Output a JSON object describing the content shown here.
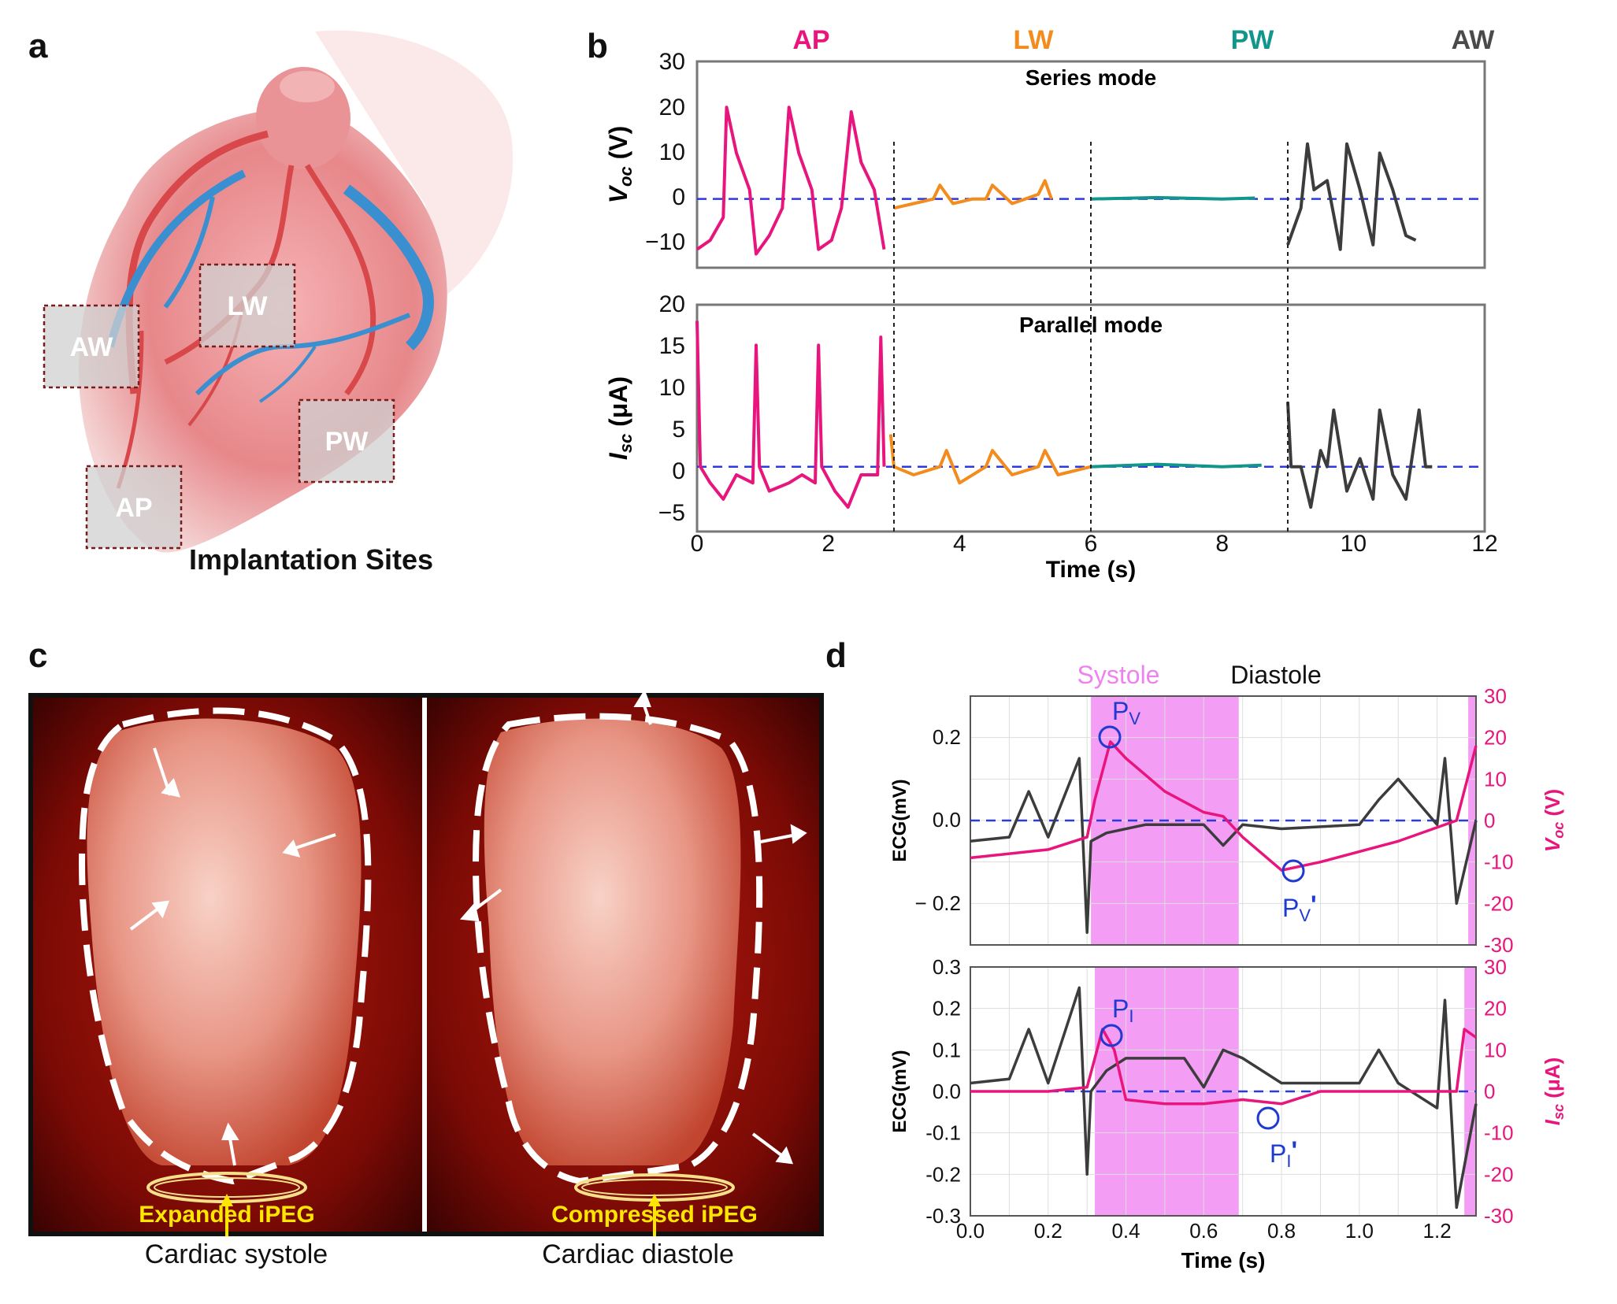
{
  "panels": {
    "a": "a",
    "b": "b",
    "c": "c",
    "d": "d"
  },
  "panel_a": {
    "caption": "Implantation Sites",
    "sites": [
      "AW",
      "LW",
      "PW",
      "AP"
    ]
  },
  "panel_b": {
    "site_labels": [
      {
        "text": "AP",
        "color": "#e8157d"
      },
      {
        "text": "LW",
        "color": "#f28c1e"
      },
      {
        "text": "PW",
        "color": "#12968c"
      },
      {
        "text": "AW",
        "color": "#4a4a4a"
      }
    ],
    "top_title": "Series mode",
    "bottom_title": "Parallel mode",
    "top_ylabel_main": "V",
    "top_ylabel_sub": "oc",
    "top_ylabel_unit": " (V)",
    "bottom_ylabel_main": "I",
    "bottom_ylabel_sub": "sc",
    "bottom_ylabel_unit": " (μA)",
    "xlabel": "Time (s)",
    "top_yticks": [
      "30",
      "20",
      "10",
      "0",
      "−10"
    ],
    "bottom_yticks": [
      "20",
      "15",
      "10",
      "5",
      "0",
      "−5"
    ],
    "xticks": [
      "0",
      "2",
      "4",
      "6",
      "8",
      "10",
      "12"
    ]
  },
  "panel_c": {
    "label_left": "Expanded iPEG",
    "label_right": "Compressed iPEG",
    "caption_left": "Cardiac systole",
    "caption_right": "Cardiac diastole"
  },
  "panel_d": {
    "systole_label": "Systole",
    "diastole_label": "Diastole",
    "xlabel": "Time (s)",
    "top_ylabel_left": "ECG(mV)",
    "top_ylabel_right_main": "V",
    "top_ylabel_right_sub": "oc",
    "top_ylabel_right_unit": " (V)",
    "bottom_ylabel_left": "ECG(mV)",
    "bottom_ylabel_right_main": "I",
    "bottom_ylabel_right_sub": "sc",
    "bottom_ylabel_right_unit": " (μA)",
    "top_left_ticks": [
      "0.2",
      "0.0",
      "− 0.2"
    ],
    "top_right_ticks": [
      "30",
      "20",
      "10",
      "0",
      "-10",
      "-20",
      "-30"
    ],
    "bottom_left_ticks": [
      "0.3",
      "0.2",
      "0.1",
      "0.0",
      "-0.1",
      "-0.2",
      "-0.3"
    ],
    "bottom_right_ticks": [
      "30",
      "20",
      "10",
      "0",
      "-10",
      "-20",
      "-30"
    ],
    "xticks": [
      "0.0",
      "0.2",
      "0.4",
      "0.6",
      "0.8",
      "1.0",
      "1.2"
    ],
    "markers": {
      "pv": "P",
      "pv_sub": "V",
      "pv2": "P",
      "pv2_sub": "V",
      "pv2_prime": "'",
      "pi": "P",
      "pi_sub": "I",
      "pi2": "P",
      "pi2_sub": "I",
      "pi2_prime": "'"
    }
  },
  "chart_data": [
    {
      "type": "line",
      "panel": "b-top",
      "ylabel": "Voc (V)",
      "ylim": [
        -15,
        30
      ],
      "xlim": [
        0,
        12
      ],
      "series": [
        {
          "name": "AP",
          "color": "#e8157d",
          "x": [
            0,
            0.2,
            0.4,
            0.45,
            0.6,
            0.8,
            0.9,
            1.1,
            1.3,
            1.4,
            1.55,
            1.75,
            1.85,
            2.05,
            2.2,
            2.35,
            2.5,
            2.7,
            2.85
          ],
          "y": [
            -11,
            -9,
            -4,
            20,
            10,
            2,
            -12,
            -8,
            -2,
            20,
            10,
            2,
            -11,
            -9,
            -2,
            19,
            8,
            2,
            -11
          ]
        },
        {
          "name": "LW",
          "color": "#f28c1e",
          "x": [
            3,
            3.3,
            3.6,
            3.7,
            3.9,
            4.2,
            4.4,
            4.5,
            4.8,
            5,
            5.2,
            5.3,
            5.4
          ],
          "y": [
            -2,
            -1,
            0,
            3,
            -1,
            0,
            0,
            3,
            -1,
            0,
            1,
            4,
            0
          ]
        },
        {
          "name": "PW",
          "color": "#12968c",
          "x": [
            6,
            7,
            8,
            8.5
          ],
          "y": [
            0,
            0.3,
            0,
            0.2
          ]
        },
        {
          "name": "AW",
          "color": "#3c3c3c",
          "x": [
            9,
            9.2,
            9.3,
            9.4,
            9.6,
            9.8,
            9.9,
            10.1,
            10.3,
            10.4,
            10.6,
            10.8,
            10.95
          ],
          "y": [
            -10,
            -2,
            12,
            2,
            4,
            -11,
            12,
            2,
            -10,
            10,
            2,
            -8,
            -9
          ]
        }
      ]
    },
    {
      "type": "line",
      "panel": "b-bottom",
      "ylabel": "Isc (μA)",
      "ylim": [
        -8,
        20
      ],
      "xlim": [
        0,
        12
      ],
      "series": [
        {
          "name": "AP",
          "color": "#e8157d",
          "x": [
            0,
            0.05,
            0.2,
            0.4,
            0.6,
            0.85,
            0.9,
            0.95,
            1.1,
            1.4,
            1.6,
            1.8,
            1.85,
            1.9,
            2.1,
            2.3,
            2.5,
            2.75,
            2.8,
            2.85
          ],
          "y": [
            18,
            0,
            -2,
            -4,
            -1,
            -2,
            15,
            0,
            -3,
            -2,
            -1,
            -2,
            15,
            0,
            -3,
            -5,
            -1,
            -1,
            16,
            0
          ]
        },
        {
          "name": "LW",
          "color": "#f28c1e",
          "x": [
            2.95,
            3,
            3.3,
            3.7,
            3.8,
            4,
            4.4,
            4.5,
            4.8,
            5.2,
            5.3,
            5.5,
            6
          ],
          "y": [
            4,
            0,
            -1,
            0,
            2,
            -2,
            0,
            2,
            -1,
            0,
            2,
            -1,
            0
          ]
        },
        {
          "name": "PW",
          "color": "#12968c",
          "x": [
            6,
            7,
            8,
            8.6
          ],
          "y": [
            0,
            0.3,
            0,
            0.2
          ]
        },
        {
          "name": "AW",
          "color": "#3c3c3c",
          "x": [
            9,
            9.05,
            9.2,
            9.35,
            9.5,
            9.6,
            9.7,
            9.9,
            10.1,
            10.3,
            10.4,
            10.6,
            10.8,
            11,
            11.1,
            11.2
          ],
          "y": [
            8,
            0,
            0,
            -5,
            2,
            0,
            7,
            -3,
            1,
            -4,
            7,
            -1,
            -4,
            7,
            0,
            0
          ]
        }
      ]
    },
    {
      "type": "line",
      "panel": "d-top",
      "ylabel": "ECG(mV)",
      "y2label": "Voc (V)",
      "ylim": [
        -0.3,
        0.3
      ],
      "y2lim": [
        -30,
        30
      ],
      "xlim": [
        0,
        1.3
      ],
      "shaded": [
        [
          0.31,
          0.69
        ],
        [
          1.28,
          1.3
        ]
      ],
      "series": [
        {
          "name": "ECG",
          "color": "#3c3c3c",
          "x": [
            0,
            0.1,
            0.15,
            0.2,
            0.28,
            0.3,
            0.31,
            0.35,
            0.45,
            0.6,
            0.65,
            0.7,
            0.8,
            1.0,
            1.05,
            1.1,
            1.2,
            1.22,
            1.25,
            1.3
          ],
          "y": [
            -0.05,
            -0.04,
            0.07,
            -0.04,
            0.15,
            -0.27,
            -0.05,
            -0.03,
            -0.01,
            -0.01,
            -0.06,
            -0.01,
            -0.02,
            -0.01,
            0.05,
            0.1,
            -0.01,
            0.15,
            -0.2,
            0
          ]
        },
        {
          "name": "Voc",
          "color": "#e8157d",
          "x": [
            0,
            0.2,
            0.3,
            0.32,
            0.36,
            0.4,
            0.5,
            0.6,
            0.65,
            0.7,
            0.8,
            0.9,
            1.1,
            1.25,
            1.3
          ],
          "y": [
            -9,
            -7,
            -4,
            5,
            19,
            15,
            7,
            2,
            1,
            -4,
            -12,
            -10,
            -5,
            0,
            18
          ]
        }
      ]
    },
    {
      "type": "line",
      "panel": "d-bottom",
      "ylabel": "ECG(mV)",
      "y2label": "Isc (μA)",
      "ylim": [
        -0.3,
        0.3
      ],
      "y2lim": [
        -30,
        30
      ],
      "xlim": [
        0,
        1.3
      ],
      "shaded": [
        [
          0.32,
          0.69
        ],
        [
          1.27,
          1.3
        ]
      ],
      "series": [
        {
          "name": "ECG",
          "color": "#3c3c3c",
          "x": [
            0,
            0.1,
            0.15,
            0.2,
            0.28,
            0.3,
            0.31,
            0.35,
            0.4,
            0.55,
            0.6,
            0.65,
            0.7,
            0.8,
            1.0,
            1.05,
            1.1,
            1.2,
            1.22,
            1.25,
            1.3
          ],
          "y": [
            0.02,
            0.03,
            0.15,
            0.02,
            0.25,
            -0.2,
            0,
            0.05,
            0.08,
            0.08,
            0.01,
            0.1,
            0.08,
            0.02,
            0.02,
            0.1,
            0.02,
            -0.04,
            0.22,
            -0.28,
            -0.03
          ]
        },
        {
          "name": "Isc",
          "color": "#e8157d",
          "x": [
            0,
            0.2,
            0.3,
            0.34,
            0.37,
            0.4,
            0.5,
            0.6,
            0.7,
            0.8,
            0.9,
            1.1,
            1.25,
            1.27,
            1.3
          ],
          "y": [
            0,
            0,
            1,
            15,
            10,
            -2,
            -3,
            -3,
            -2,
            -3,
            0,
            0,
            0,
            15,
            13
          ]
        }
      ]
    }
  ]
}
